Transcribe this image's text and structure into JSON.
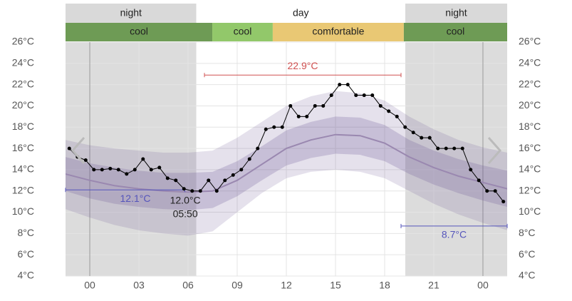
{
  "chart_data": {
    "type": "line",
    "xlim": [
      -1.48,
      25.48
    ],
    "ylim": [
      4,
      26
    ],
    "xticks": [
      {
        "value": 0,
        "label": "00"
      },
      {
        "value": 3,
        "label": "03"
      },
      {
        "value": 6,
        "label": "06"
      },
      {
        "value": 9,
        "label": "09"
      },
      12,
      15,
      18,
      21,
      {
        "value": 24,
        "label": "00"
      }
    ],
    "yticks": [
      {
        "value": 4,
        "label": "4°C"
      },
      {
        "value": 6,
        "label": "6°C"
      },
      {
        "value": 8,
        "label": "8°C"
      },
      {
        "value": 10,
        "label": "10°C"
      },
      {
        "value": 12,
        "label": "12°C"
      },
      {
        "value": 14,
        "label": "14°C"
      },
      {
        "value": 16,
        "label": "16°C"
      },
      {
        "value": 18,
        "label": "18°C"
      },
      {
        "value": 20,
        "label": "20°C"
      },
      {
        "value": 22,
        "label": "22°C"
      },
      {
        "value": 24,
        "label": "24°C"
      },
      {
        "value": 26,
        "label": "26°C"
      }
    ],
    "grid": true,
    "periods": [
      {
        "label": "night",
        "start": -1.48,
        "end": 6.5
      },
      {
        "label": "day",
        "start": 6.5,
        "end": 19.26
      },
      {
        "label": "night",
        "start": 19.26,
        "end": 25.48
      }
    ],
    "comfort": [
      {
        "label": "cool",
        "start": -1.48,
        "end": 7.48,
        "color": "#6e9b55"
      },
      {
        "label": "cool",
        "start": 7.48,
        "end": 11.17,
        "color": "#92c86a"
      },
      {
        "label": "comfortable",
        "start": 11.17,
        "end": 19.17,
        "color": "#e9c874"
      },
      {
        "label": "cool",
        "start": 19.17,
        "end": 25.48,
        "color": "#6e9b55"
      }
    ],
    "climate": {
      "x": [
        -1.5,
        0,
        1.5,
        3,
        4.5,
        6,
        7.5,
        9,
        10.5,
        12,
        13.5,
        15,
        16.5,
        18,
        19.5,
        21,
        22.5,
        24,
        25.5
      ],
      "mean": [
        13.6,
        13.0,
        12.5,
        12.2,
        12.0,
        11.9,
        12.0,
        13.0,
        14.5,
        16.0,
        16.8,
        17.3,
        17.2,
        16.5,
        15.2,
        14.2,
        13.4,
        12.8,
        12.2
      ],
      "inner_low": [
        12,
        11.3,
        10.8,
        10.5,
        10.3,
        10.2,
        10.4,
        11.5,
        13,
        14.4,
        15.1,
        15.5,
        15.4,
        14.8,
        13.6,
        12.6,
        11.8,
        11.1,
        10.5
      ],
      "inner_high": [
        15.2,
        14.6,
        14.2,
        13.9,
        13.7,
        13.7,
        13.8,
        14.8,
        16.2,
        17.7,
        18.5,
        19,
        18.9,
        18.2,
        16.8,
        15.8,
        15,
        14.4,
        13.9
      ],
      "outer_low": [
        10.3,
        9.5,
        8.8,
        8.3,
        8,
        7.8,
        8.2,
        10,
        11.8,
        13.2,
        13.8,
        14,
        13.8,
        13.2,
        12,
        10.8,
        9.8,
        9,
        8.3
      ],
      "outer_high": [
        16.8,
        16.3,
        16,
        15.8,
        15.6,
        15.6,
        15.8,
        17,
        18.5,
        20,
        20.9,
        21.4,
        21.2,
        20.5,
        19,
        17.8,
        16.8,
        16.1,
        15.6
      ]
    },
    "series": [
      {
        "color": "#000000",
        "x": [
          -1.25,
          -0.75,
          -0.25,
          0.25,
          0.75,
          1.25,
          1.75,
          2.25,
          2.75,
          3.25,
          3.75,
          4.25,
          4.75,
          5.25,
          5.75,
          6.25,
          6.75,
          7.25,
          7.75,
          8.25,
          8.75,
          9.25,
          9.75,
          10.25,
          10.75,
          11.25,
          11.75,
          12.25,
          12.75,
          13.25,
          13.75,
          14.25,
          14.75,
          15.25,
          15.75,
          16.25,
          16.75,
          17.25,
          17.75,
          18.25,
          18.75,
          19.25,
          19.75,
          20.25,
          20.75,
          21.25,
          21.75,
          22.25,
          22.75,
          23.25,
          23.75,
          24.25,
          24.75,
          25.25
        ],
        "values": [
          16,
          15.2,
          14.9,
          14,
          14,
          14.1,
          14,
          13.6,
          14,
          15,
          14,
          14.2,
          13.2,
          13,
          12.2,
          12,
          12,
          13,
          12,
          13,
          13.5,
          14,
          15,
          16,
          17.8,
          18,
          18,
          20,
          19,
          19,
          20,
          20,
          21,
          22,
          22,
          21,
          21,
          21,
          20,
          19.5,
          19,
          18,
          17.5,
          17,
          17,
          16,
          16,
          16,
          16,
          14,
          13,
          12,
          12,
          11
        ]
      }
    ],
    "reference_lines": [
      {
        "label": "22.9°C",
        "value": 22.9,
        "start": 7,
        "end": 19,
        "color": "#d05050"
      },
      {
        "label": "12.1°C",
        "value": 12.1,
        "start": -1.48,
        "end": 5.8,
        "color": "#5555bb"
      },
      {
        "label": "8.7°C",
        "value": 8.7,
        "start": 19,
        "end": 25.48,
        "color": "#5555bb"
      }
    ],
    "min_annotation": {
      "value": 12.0,
      "x": 5.83,
      "label": "12.0°C",
      "time": "05:50"
    }
  }
}
